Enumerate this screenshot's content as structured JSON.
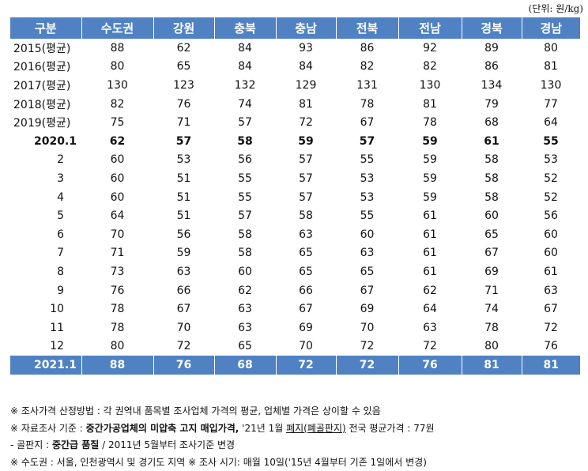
{
  "unit": "(단위: 원/kg)",
  "headers": [
    "구분",
    "수도권",
    "강원",
    "충북",
    "충남",
    "전북",
    "전남",
    "경북",
    "경남"
  ],
  "rows": [
    {
      "label": "2015(평균)",
      "values": [
        "88",
        "62",
        "84",
        "93",
        "86",
        "92",
        "89",
        "80"
      ],
      "style": "yr"
    },
    {
      "label": "2016(평균)",
      "values": [
        "80",
        "65",
        "84",
        "84",
        "82",
        "82",
        "86",
        "81"
      ],
      "style": "yr"
    },
    {
      "label": "2017(평균)",
      "values": [
        "130",
        "123",
        "132",
        "129",
        "131",
        "130",
        "134",
        "130"
      ],
      "style": "yr"
    },
    {
      "label": "2018(평균)",
      "values": [
        "82",
        "76",
        "74",
        "81",
        "78",
        "81",
        "79",
        "77"
      ],
      "style": "yr"
    },
    {
      "label": "2019(평균)",
      "values": [
        "75",
        "71",
        "57",
        "72",
        "67",
        "78",
        "68",
        "64"
      ],
      "style": "yr"
    },
    {
      "label": "2020.1",
      "values": [
        "62",
        "57",
        "58",
        "59",
        "57",
        "59",
        "61",
        "55"
      ],
      "style": "bold"
    },
    {
      "label": "2",
      "values": [
        "60",
        "53",
        "56",
        "57",
        "55",
        "59",
        "58",
        "53"
      ],
      "style": "m"
    },
    {
      "label": "3",
      "values": [
        "60",
        "51",
        "55",
        "57",
        "53",
        "59",
        "58",
        "52"
      ],
      "style": "m"
    },
    {
      "label": "4",
      "values": [
        "60",
        "51",
        "55",
        "57",
        "53",
        "59",
        "58",
        "52"
      ],
      "style": "m"
    },
    {
      "label": "5",
      "values": [
        "64",
        "51",
        "57",
        "58",
        "55",
        "61",
        "60",
        "56"
      ],
      "style": "m"
    },
    {
      "label": "6",
      "values": [
        "70",
        "56",
        "58",
        "63",
        "60",
        "61",
        "65",
        "60"
      ],
      "style": "m"
    },
    {
      "label": "7",
      "values": [
        "71",
        "59",
        "58",
        "65",
        "63",
        "61",
        "67",
        "60"
      ],
      "style": "m"
    },
    {
      "label": "8",
      "values": [
        "73",
        "63",
        "60",
        "65",
        "65",
        "61",
        "69",
        "61"
      ],
      "style": "m"
    },
    {
      "label": "9",
      "values": [
        "76",
        "66",
        "62",
        "66",
        "67",
        "62",
        "71",
        "63"
      ],
      "style": "m"
    },
    {
      "label": "10",
      "values": [
        "78",
        "67",
        "63",
        "67",
        "69",
        "64",
        "74",
        "67"
      ],
      "style": "m"
    },
    {
      "label": "11",
      "values": [
        "78",
        "70",
        "63",
        "69",
        "70",
        "63",
        "78",
        "72"
      ],
      "style": "m"
    },
    {
      "label": "12",
      "values": [
        "80",
        "72",
        "65",
        "70",
        "72",
        "72",
        "80",
        "76"
      ],
      "style": "m"
    }
  ],
  "footer_row": {
    "label": "2021.1",
    "values": [
      "88",
      "76",
      "68",
      "72",
      "72",
      "76",
      "81",
      "81"
    ]
  },
  "notes": {
    "n1": "※ 조사가격 산정방법 : 각 권역내 품목별 조사업체 가격의 평균, 업체별 가격은 상이할 수 있음",
    "n2_a": "※ 자료조사 기준 : ",
    "n2_b": "중간가공업체의 미압축 고지 매입가격,",
    "n2_c": " '21년 1월 ",
    "n2_d": "폐지(폐골판지)",
    "n2_e": " 전국 평균가격 : 77원",
    "n3_a": " - 골판지 : ",
    "n3_b": "중간급 품질",
    "n3_c": " / 2011년 5월부터 조사기준 변경",
    "n4": "※ 수도권 : 서울, 인천광역시 및 경기도 지역      ※ 조사 시기: 매월 10일('15년 4월부터 기존 1일에서 변경)"
  }
}
